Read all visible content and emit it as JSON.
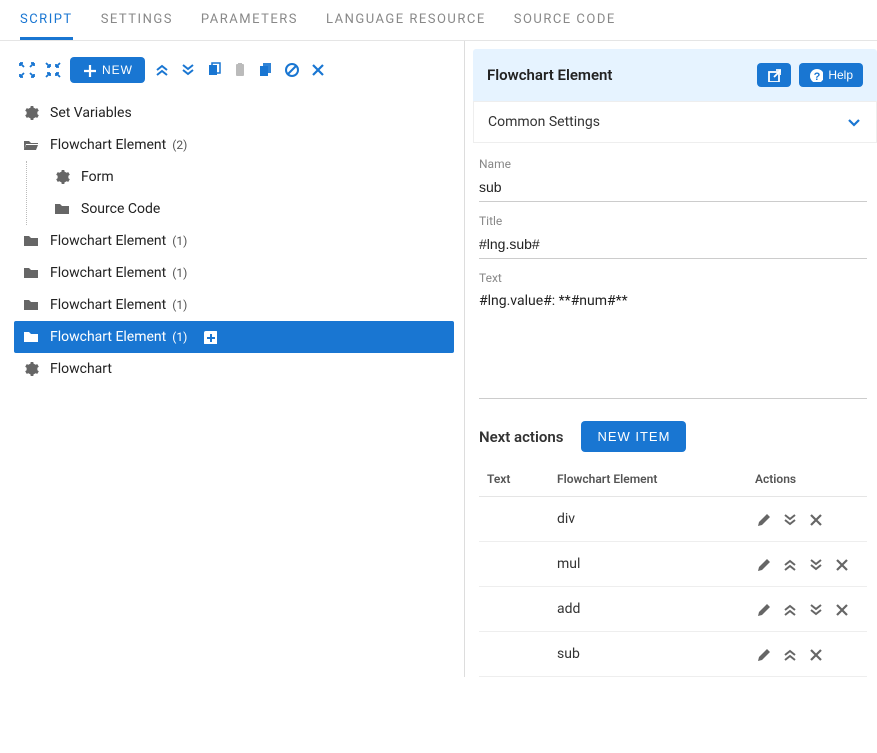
{
  "tabs": [
    {
      "label": "SCRIPT",
      "active": true
    },
    {
      "label": "SETTINGS",
      "active": false
    },
    {
      "label": "PARAMETERS",
      "active": false
    },
    {
      "label": "LANGUAGE RESOURCE",
      "active": false
    },
    {
      "label": "SOURCE CODE",
      "active": false
    }
  ],
  "toolbar": {
    "new_label": "NEW"
  },
  "tree": [
    {
      "icon": "gear",
      "label": "Set Variables",
      "count": "",
      "selected": false,
      "children": []
    },
    {
      "icon": "folder-open",
      "label": "Flowchart Element",
      "count": "(2)",
      "selected": false,
      "children": [
        {
          "icon": "gear",
          "label": "Form",
          "count": ""
        },
        {
          "icon": "folder",
          "label": "Source Code",
          "count": ""
        }
      ]
    },
    {
      "icon": "folder",
      "label": "Flowchart Element",
      "count": "(1)",
      "selected": false,
      "children": []
    },
    {
      "icon": "folder",
      "label": "Flowchart Element",
      "count": "(1)",
      "selected": false,
      "children": []
    },
    {
      "icon": "folder",
      "label": "Flowchart Element",
      "count": "(1)",
      "selected": false,
      "children": []
    },
    {
      "icon": "folder",
      "label": "Flowchart Element",
      "count": "(1)",
      "selected": true,
      "children": []
    },
    {
      "icon": "gear",
      "label": "Flowchart",
      "count": "",
      "selected": false,
      "children": []
    }
  ],
  "panel": {
    "title": "Flowchart Element",
    "help_label": "Help",
    "common_settings_label": "Common Settings",
    "name_label": "Name",
    "name_value": "sub",
    "title_label": "Title",
    "title_value": "#lng.sub#",
    "text_label": "Text",
    "text_value": "#lng.value#: **#num#**",
    "next_actions_label": "Next actions",
    "new_item_label": "NEW ITEM",
    "columns": {
      "text": "Text",
      "element": "Flowchart Element",
      "actions": "Actions"
    },
    "rows": [
      {
        "text": "",
        "element": "div",
        "actions": [
          "edit",
          "down",
          "delete"
        ]
      },
      {
        "text": "",
        "element": "mul",
        "actions": [
          "edit",
          "up",
          "down",
          "delete"
        ]
      },
      {
        "text": "",
        "element": "add",
        "actions": [
          "edit",
          "up",
          "down",
          "delete"
        ]
      },
      {
        "text": "",
        "element": "sub",
        "actions": [
          "edit",
          "up",
          "delete"
        ]
      }
    ]
  },
  "colors": {
    "primary": "#1976d2",
    "header_bg": "#e6f3ff",
    "muted": "#888"
  }
}
